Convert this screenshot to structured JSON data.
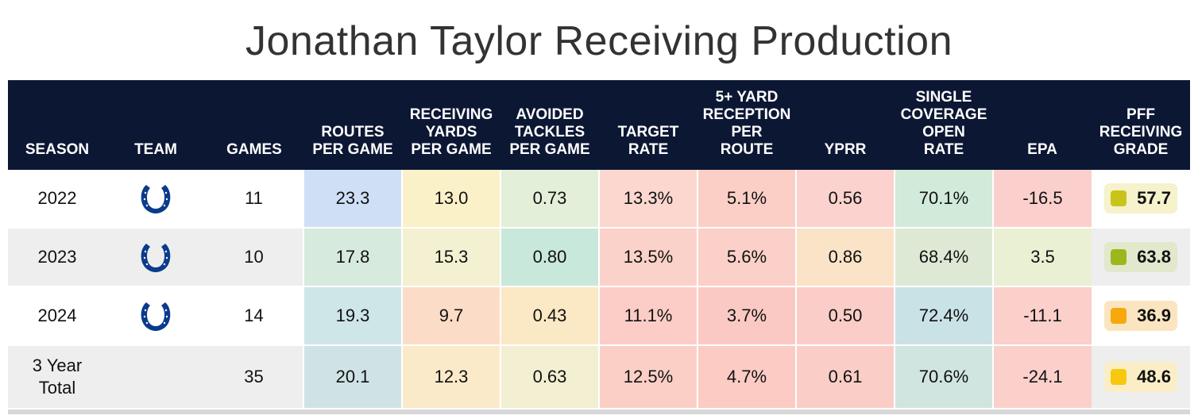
{
  "title": "Jonathan Taylor Receiving Production",
  "headers": [
    [
      "SEASON"
    ],
    [
      "TEAM"
    ],
    [
      "GAMES"
    ],
    [
      "ROUTES",
      "PER GAME"
    ],
    [
      "RECEIVING",
      "YARDS",
      "PER GAME"
    ],
    [
      "AVOIDED",
      "TACKLES",
      "PER GAME"
    ],
    [
      "TARGET",
      "RATE"
    ],
    [
      "5+ YARD",
      "RECEPTION",
      "PER",
      "ROUTE"
    ],
    [
      "YPRR"
    ],
    [
      "SINGLE",
      "COVERAGE",
      "OPEN",
      "RATE"
    ],
    [
      "EPA"
    ],
    [
      "PFF",
      "RECEIVING",
      "GRADE"
    ]
  ],
  "team_icon": "colts-horseshoe-icon",
  "rows": [
    {
      "season": "2022",
      "has_logo": true,
      "games": "11",
      "stats": [
        "23.3",
        "13.0",
        "0.73",
        "13.3%",
        "5.1%",
        "0.56",
        "70.1%",
        "-16.5"
      ],
      "colors": [
        "#cfdff5",
        "#fbf1c8",
        "#e4efd9",
        "#fbd7cf",
        "#fbcfc6",
        "#fbd2cd",
        "#d2ead9",
        "#fbd0cc"
      ],
      "grade": "57.7",
      "grade_box": "#f5f2cc",
      "grade_dot": "#c9c41a"
    },
    {
      "season": "2023",
      "has_logo": true,
      "games": "10",
      "stats": [
        "17.8",
        "15.3",
        "0.80",
        "13.5%",
        "5.6%",
        "0.86",
        "68.4%",
        "3.5"
      ],
      "colors": [
        "#d6ebde",
        "#f4f0d2",
        "#c8e8db",
        "#fbd2c9",
        "#fbd0c8",
        "#fbe3c7",
        "#dde9d5",
        "#eaf0d3"
      ],
      "grade": "63.8",
      "grade_box": "#e2e8cc",
      "grade_dot": "#9ab81c"
    },
    {
      "season": "2024",
      "has_logo": true,
      "games": "14",
      "stats": [
        "19.3",
        "9.7",
        "0.43",
        "11.1%",
        "3.7%",
        "0.50",
        "72.4%",
        "-11.1"
      ],
      "colors": [
        "#cfe6e8",
        "#fbdcc6",
        "#fbe8c4",
        "#fbcdc6",
        "#fbc9c4",
        "#fbcdc8",
        "#c9e2e6",
        "#fbcfca"
      ],
      "grade": "36.9",
      "grade_box": "#fbe5c0",
      "grade_dot": "#f7a80d"
    },
    {
      "season": "3 Year Total",
      "has_logo": false,
      "games": "35",
      "stats": [
        "20.1",
        "12.3",
        "0.63",
        "12.5%",
        "4.7%",
        "0.61",
        "70.6%",
        "-24.1"
      ],
      "colors": [
        "#cfe3e6",
        "#fbeac9",
        "#f3efd2",
        "#fbcfc6",
        "#fbcbc4",
        "#fbcdc7",
        "#d0e5e0",
        "#fbd0cb"
      ],
      "grade": "48.6",
      "grade_box": "#fbeec7",
      "grade_dot": "#f7c80d"
    }
  ],
  "colors": {
    "header_bg": "#0c1734",
    "logo": "#0b3b8c",
    "alt_row": "#eeeeee"
  }
}
